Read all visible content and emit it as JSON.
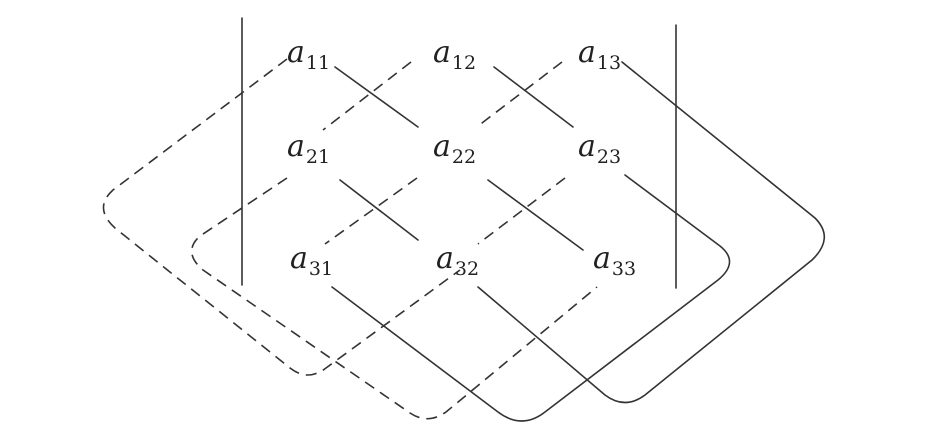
{
  "matrix": {
    "rows": [
      [
        {
          "base": "a",
          "sub": "11"
        },
        {
          "base": "a",
          "sub": "12"
        },
        {
          "base": "a",
          "sub": "13"
        }
      ],
      [
        {
          "base": "a",
          "sub": "21"
        },
        {
          "base": "a",
          "sub": "22"
        },
        {
          "base": "a",
          "sub": "23"
        }
      ],
      [
        {
          "base": "a",
          "sub": "31"
        },
        {
          "base": "a",
          "sub": "32"
        },
        {
          "base": "a",
          "sub": "33"
        }
      ]
    ]
  },
  "lines": {
    "positive_products_style": "solid",
    "negative_products_style": "dashed",
    "stroke_color": "#333333"
  }
}
